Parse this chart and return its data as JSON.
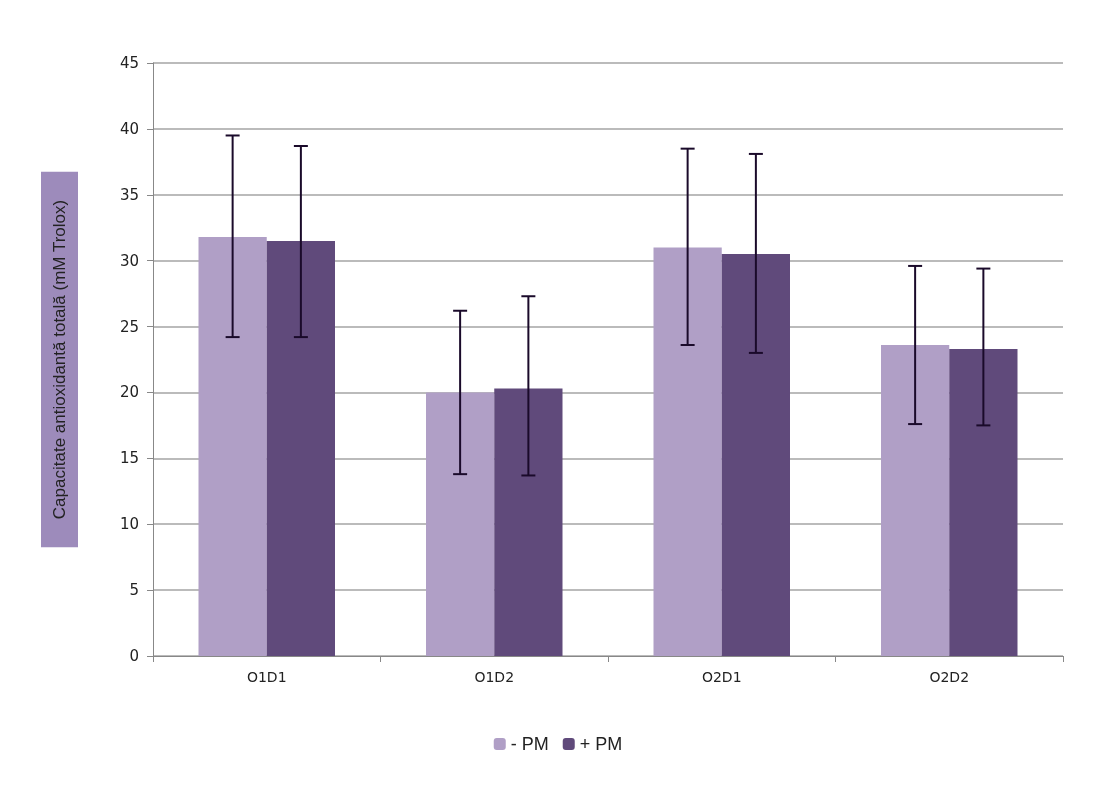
{
  "chart_data": {
    "type": "bar",
    "ylabel": "Capacitate antioxidantă totală (mM Trolox)",
    "categories": [
      "O1D1",
      "O1D2",
      "O2D1",
      "O2D2"
    ],
    "series": [
      {
        "name": "- PM",
        "color": "#b09fc6",
        "values": [
          31.8,
          20.0,
          31.0,
          23.6
        ],
        "errors": [
          [
            24.2,
            39.5
          ],
          [
            13.8,
            26.2
          ],
          [
            23.6,
            38.5
          ],
          [
            17.6,
            29.6
          ]
        ]
      },
      {
        "name": "+ PM",
        "color": "#604a7b",
        "values": [
          31.5,
          20.3,
          30.5,
          23.3
        ],
        "errors": [
          [
            24.2,
            38.7
          ],
          [
            13.7,
            27.3
          ],
          [
            23.0,
            38.1
          ],
          [
            17.5,
            29.4
          ]
        ]
      }
    ],
    "ylim": [
      0,
      45
    ],
    "yticks": [
      0,
      5,
      10,
      15,
      20,
      25,
      30,
      35,
      40,
      45
    ],
    "grid": "y",
    "legend": "bottom"
  }
}
